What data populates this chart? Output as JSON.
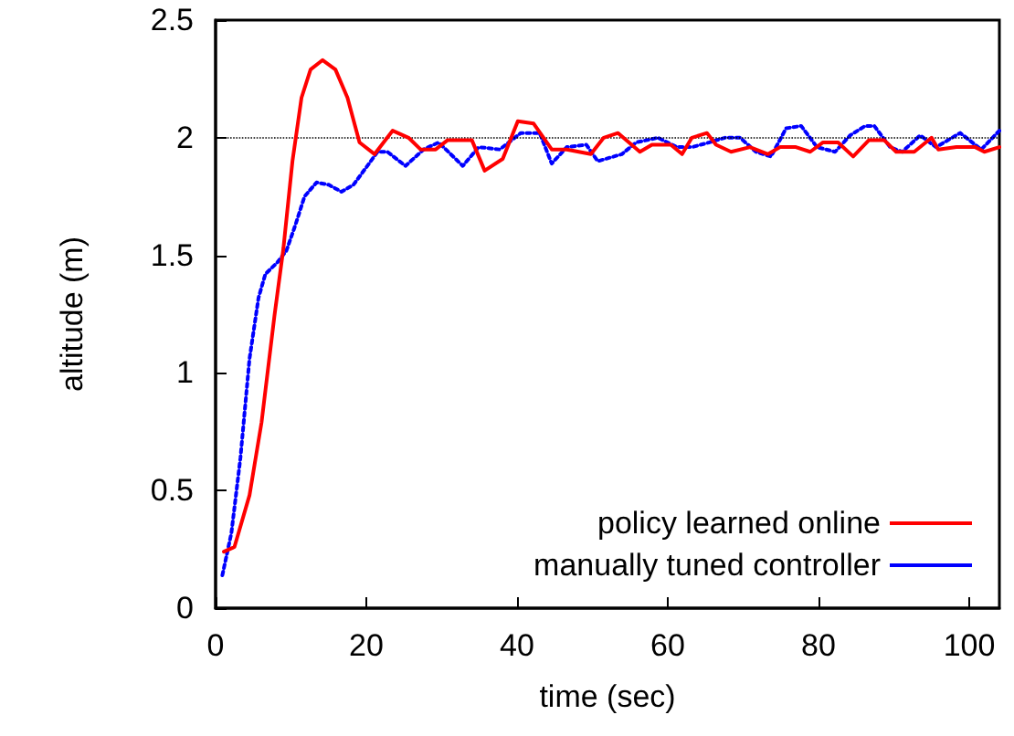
{
  "chart_data": {
    "type": "line",
    "xlabel": "time (sec)",
    "ylabel": "altitude (m)",
    "xlim": [
      0,
      104
    ],
    "xticks": [
      0,
      20,
      40,
      60,
      80,
      100
    ],
    "ylim": [
      0,
      2.5
    ],
    "yticks": [
      0,
      0.5,
      1,
      1.5,
      2,
      2.5
    ],
    "grid": false,
    "legend": "bottom right",
    "marker": "none",
    "ref_lines": [
      {
        "axis": "y",
        "value": 2,
        "color": "#000000",
        "line_style": "dotted"
      }
    ],
    "series": [
      {
        "name": "policy learned online",
        "color": "#ff0000",
        "line_style": "solid",
        "x": [
          1.1,
          2.5,
          4.5,
          6.1,
          7.8,
          9,
          10.2,
          11.4,
          12.6,
          14.2,
          15.9,
          17.5,
          19.1,
          21.1,
          23.5,
          25.6,
          27.2,
          29.2,
          30.8,
          34,
          35.7,
          38.1,
          40.1,
          42.2,
          44.6,
          46.6,
          49.8,
          51.5,
          53.4,
          56.3,
          57.9,
          60.4,
          61.9,
          63.2,
          65.2,
          66.4,
          68.4,
          70.9,
          73.3,
          74.9,
          77,
          78.9,
          80.6,
          82.6,
          84.6,
          86.7,
          88.7,
          90.3,
          92.7,
          95,
          95.9,
          98.3,
          100.8,
          102,
          104
        ],
        "values": [
          0.24,
          0.26,
          0.48,
          0.79,
          1.24,
          1.53,
          1.9,
          2.17,
          2.29,
          2.33,
          2.29,
          2.17,
          1.98,
          1.93,
          2.03,
          2.0,
          1.95,
          1.95,
          1.99,
          1.99,
          1.86,
          1.91,
          2.07,
          2.06,
          1.95,
          1.95,
          1.93,
          2.0,
          2.02,
          1.94,
          1.97,
          1.97,
          1.93,
          2.0,
          2.02,
          1.97,
          1.94,
          1.96,
          1.93,
          1.96,
          1.96,
          1.94,
          1.98,
          1.98,
          1.92,
          1.99,
          1.99,
          1.94,
          1.94,
          2.0,
          1.95,
          1.96,
          1.96,
          1.94,
          1.96
        ]
      },
      {
        "name": "manually tuned controller",
        "color": "#0000ff",
        "line_style": "dotted",
        "x": [
          0.9,
          2.1,
          3.3,
          4.5,
          5.7,
          6.6,
          8.2,
          9.4,
          10.6,
          11.8,
          13.4,
          15,
          16.7,
          18.3,
          19.9,
          21.5,
          22.8,
          25.2,
          27.6,
          29.6,
          32.8,
          34.9,
          37.7,
          40.5,
          43,
          44.6,
          46.6,
          49.2,
          50.7,
          53.9,
          55.8,
          58.7,
          61.2,
          63.2,
          65.5,
          67.6,
          69.6,
          71.7,
          73.7,
          75.7,
          77.7,
          79.8,
          82.2,
          84.2,
          86.2,
          87.4,
          89.5,
          91.1,
          93.5,
          95.6,
          98.8,
          101.6,
          104
        ],
        "values": [
          0.14,
          0.32,
          0.64,
          1.06,
          1.32,
          1.42,
          1.47,
          1.52,
          1.63,
          1.75,
          1.81,
          1.8,
          1.77,
          1.8,
          1.87,
          1.94,
          1.94,
          1.88,
          1.95,
          1.98,
          1.88,
          1.96,
          1.95,
          2.02,
          2.02,
          1.89,
          1.96,
          1.97,
          1.9,
          1.93,
          1.98,
          2.0,
          1.96,
          1.96,
          1.98,
          2.0,
          2.0,
          1.94,
          1.92,
          2.04,
          2.05,
          1.96,
          1.94,
          2.01,
          2.05,
          2.05,
          1.96,
          1.94,
          2.01,
          1.96,
          2.02,
          1.95,
          2.03
        ]
      }
    ]
  }
}
